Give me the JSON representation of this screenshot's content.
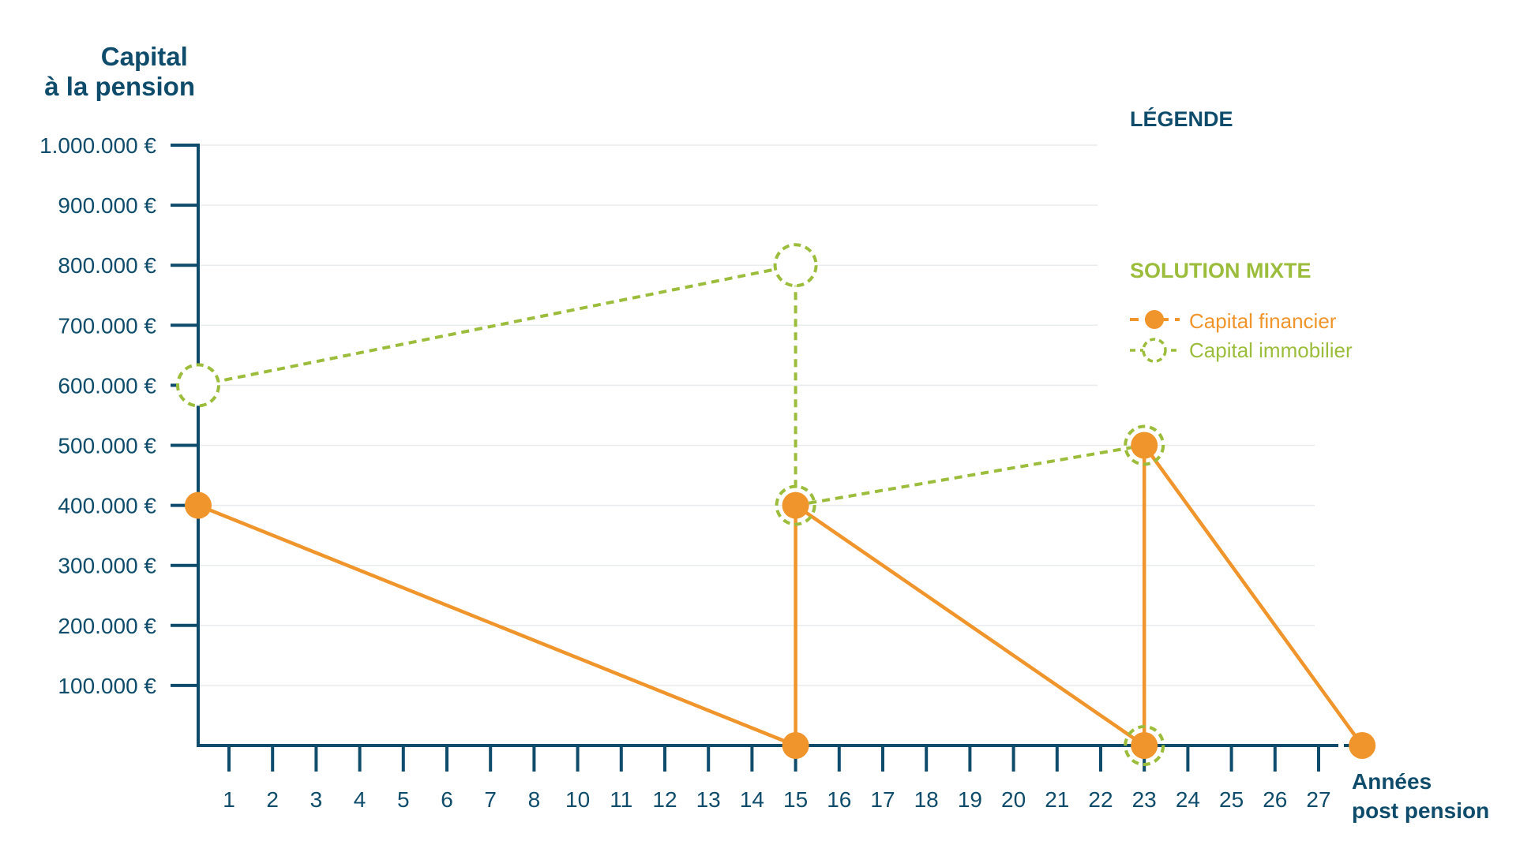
{
  "chart_data": {
    "type": "line",
    "ylabel": [
      "Capital",
      "à la pension"
    ],
    "xlabel": [
      "Années",
      "post pension"
    ],
    "y_ticks": [
      "100.000 €",
      "200.000 €",
      "300.000 €",
      "400.000 €",
      "500.000 €",
      "600.000 €",
      "700.000 €",
      "800.000 €",
      "900.000 €",
      "1.000.000 €"
    ],
    "y_tick_values": [
      100000,
      200000,
      300000,
      400000,
      500000,
      600000,
      700000,
      800000,
      900000,
      1000000
    ],
    "x_ticks": [
      "1",
      "2",
      "3",
      "4",
      "5",
      "6",
      "7",
      "8",
      "10",
      "11",
      "12",
      "13",
      "14",
      "15",
      "16",
      "17",
      "18",
      "19",
      "20",
      "21",
      "22",
      "23",
      "24",
      "25",
      "26",
      "27"
    ],
    "ylim": [
      0,
      1000000
    ],
    "grid": "horizontal",
    "legend": {
      "title": "LÉGENDE",
      "subtitle": "SOLUTION MIXTE",
      "placement": "right",
      "entries": [
        {
          "name": "Capital financier",
          "marker": "filled-circle",
          "color": "#f0952b"
        },
        {
          "name": "Capital immobilier",
          "marker": "dashed-open-circle",
          "color": "#9bbd3b"
        }
      ]
    },
    "series": [
      {
        "name": "Capital financier",
        "color": "#f0952b",
        "points": [
          {
            "x": "0",
            "y": 400000
          },
          {
            "x": "14",
            "y": 0
          },
          {
            "x": "14",
            "y": 400000
          },
          {
            "x": "22",
            "y": 0
          },
          {
            "x": "22",
            "y": 500000
          },
          {
            "x": "27",
            "y": 0
          }
        ]
      },
      {
        "name": "Capital immobilier",
        "color": "#9bbd3b",
        "points": [
          {
            "x": "0",
            "y": 600000
          },
          {
            "x": "14",
            "y": 800000
          },
          {
            "x": "14",
            "y": 400000
          },
          {
            "x": "22",
            "y": 500000
          },
          {
            "x": "22",
            "y": 0
          }
        ]
      }
    ],
    "colors": {
      "axis": "#0f4c6b",
      "grid": "#e9ecee",
      "financier": "#f0952b",
      "immobilier": "#9bbd3b"
    }
  }
}
